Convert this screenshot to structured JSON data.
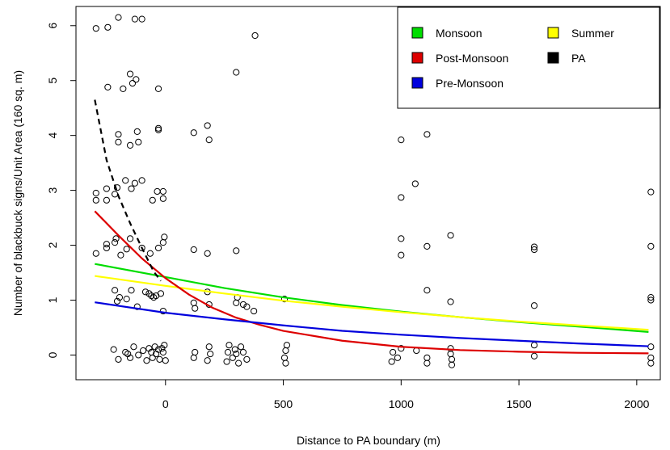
{
  "chart_data": {
    "type": "scatter",
    "title": "",
    "xlabel": "Distance to PA boundary (m)",
    "ylabel": "Number of blackbuck signs/Unit Area (160 sq. m)",
    "xlim": [
      -380,
      2100
    ],
    "ylim": [
      -0.45,
      6.35
    ],
    "xticks": [
      0,
      500,
      1000,
      1500,
      2000
    ],
    "yticks": [
      0,
      1,
      2,
      3,
      4,
      5,
      6
    ],
    "grid": false,
    "legend_position": "top-right",
    "legend": [
      {
        "name": "Monsoon",
        "color": "#00dd00"
      },
      {
        "name": "Summer",
        "color": "#ffff00"
      },
      {
        "name": "Post-Monsoon",
        "color": "#dd0000"
      },
      {
        "name": "PA",
        "color": "#000000"
      },
      {
        "name": "Pre-Monsoon",
        "color": "#0000dd"
      }
    ],
    "points": [
      [
        -295,
        5.95
      ],
      [
        -245,
        5.97
      ],
      [
        -200,
        6.15
      ],
      [
        -130,
        6.12
      ],
      [
        -100,
        6.12
      ],
      [
        -245,
        4.88
      ],
      [
        -180,
        4.85
      ],
      [
        -150,
        5.12
      ],
      [
        -140,
        4.95
      ],
      [
        -125,
        5.02
      ],
      [
        -30,
        4.85
      ],
      [
        -200,
        3.88
      ],
      [
        -200,
        4.02
      ],
      [
        -150,
        3.82
      ],
      [
        -120,
        4.07
      ],
      [
        -115,
        3.88
      ],
      [
        -30,
        4.1
      ],
      [
        -30,
        4.13
      ],
      [
        -295,
        2.82
      ],
      [
        -295,
        2.95
      ],
      [
        -250,
        2.82
      ],
      [
        -250,
        3.03
      ],
      [
        -215,
        2.93
      ],
      [
        -205,
        3.05
      ],
      [
        -170,
        3.18
      ],
      [
        -145,
        3.03
      ],
      [
        -130,
        3.13
      ],
      [
        -100,
        3.18
      ],
      [
        -55,
        2.82
      ],
      [
        -35,
        2.98
      ],
      [
        -10,
        2.85
      ],
      [
        -10,
        2.98
      ],
      [
        -295,
        1.85
      ],
      [
        -250,
        1.95
      ],
      [
        -250,
        2.02
      ],
      [
        -215,
        2.05
      ],
      [
        -210,
        2.12
      ],
      [
        -190,
        1.82
      ],
      [
        -165,
        1.93
      ],
      [
        -150,
        2.12
      ],
      [
        -100,
        1.95
      ],
      [
        -65,
        1.85
      ],
      [
        -30,
        1.95
      ],
      [
        -10,
        2.05
      ],
      [
        -5,
        2.15
      ],
      [
        -215,
        1.18
      ],
      [
        -205,
        0.98
      ],
      [
        -195,
        1.05
      ],
      [
        -165,
        1.02
      ],
      [
        -145,
        1.18
      ],
      [
        -120,
        0.88
      ],
      [
        -85,
        1.15
      ],
      [
        -70,
        1.12
      ],
      [
        -60,
        1.08
      ],
      [
        -50,
        1.05
      ],
      [
        -40,
        1.08
      ],
      [
        -20,
        1.12
      ],
      [
        -10,
        0.8
      ],
      [
        -220,
        0.1
      ],
      [
        -200,
        -0.08
      ],
      [
        -170,
        0.05
      ],
      [
        -160,
        0.02
      ],
      [
        -150,
        -0.05
      ],
      [
        -135,
        0.15
      ],
      [
        -115,
        0.0
      ],
      [
        -95,
        0.08
      ],
      [
        -80,
        -0.1
      ],
      [
        -70,
        0.12
      ],
      [
        -60,
        0.05
      ],
      [
        -55,
        -0.05
      ],
      [
        -45,
        0.15
      ],
      [
        -40,
        0.02
      ],
      [
        -30,
        0.1
      ],
      [
        -25,
        -0.08
      ],
      [
        -15,
        0.12
      ],
      [
        -10,
        0.05
      ],
      [
        -5,
        0.18
      ],
      [
        0,
        -0.1
      ],
      [
        120,
        4.05
      ],
      [
        178,
        4.18
      ],
      [
        185,
        3.92
      ],
      [
        120,
        1.92
      ],
      [
        178,
        1.85
      ],
      [
        120,
        0.95
      ],
      [
        125,
        0.85
      ],
      [
        178,
        1.15
      ],
      [
        185,
        0.92
      ],
      [
        120,
        -0.05
      ],
      [
        125,
        0.05
      ],
      [
        178,
        -0.1
      ],
      [
        185,
        0.15
      ],
      [
        190,
        0.02
      ],
      [
        260,
        -0.12
      ],
      [
        265,
        0.05
      ],
      [
        270,
        0.18
      ],
      [
        285,
        -0.05
      ],
      [
        295,
        0.1
      ],
      [
        300,
        0.02
      ],
      [
        310,
        -0.15
      ],
      [
        320,
        0.15
      ],
      [
        330,
        0.05
      ],
      [
        345,
        -0.08
      ],
      [
        300,
        1.9
      ],
      [
        300,
        5.15
      ],
      [
        380,
        5.82
      ],
      [
        300,
        0.95
      ],
      [
        305,
        1.05
      ],
      [
        330,
        0.92
      ],
      [
        345,
        0.88
      ],
      [
        375,
        0.8
      ],
      [
        505,
        1.02
      ],
      [
        505,
        -0.05
      ],
      [
        510,
        0.08
      ],
      [
        510,
        -0.15
      ],
      [
        515,
        0.18
      ],
      [
        960,
        -0.12
      ],
      [
        965,
        0.05
      ],
      [
        985,
        -0.05
      ],
      [
        1000,
        3.92
      ],
      [
        1000,
        2.87
      ],
      [
        1000,
        2.12
      ],
      [
        1000,
        1.82
      ],
      [
        1000,
        0.12
      ],
      [
        1060,
        3.12
      ],
      [
        1065,
        0.08
      ],
      [
        1110,
        4.02
      ],
      [
        1110,
        1.98
      ],
      [
        1110,
        1.18
      ],
      [
        1110,
        -0.05
      ],
      [
        1110,
        -0.15
      ],
      [
        1210,
        2.18
      ],
      [
        1210,
        0.97
      ],
      [
        1210,
        0.12
      ],
      [
        1210,
        0.02
      ],
      [
        1215,
        -0.18
      ],
      [
        1215,
        -0.08
      ],
      [
        1565,
        1.97
      ],
      [
        1565,
        1.92
      ],
      [
        1565,
        0.9
      ],
      [
        1565,
        0.18
      ],
      [
        1565,
        -0.02
      ],
      [
        2060,
        2.97
      ],
      [
        2060,
        1.98
      ],
      [
        2060,
        1.05
      ],
      [
        2060,
        1.0
      ],
      [
        2060,
        0.15
      ],
      [
        2060,
        -0.05
      ],
      [
        2060,
        -0.15
      ]
    ],
    "series": [
      {
        "name": "Monsoon",
        "color": "#00dd00",
        "style": "solid",
        "x": [
          -300,
          0,
          250,
          500,
          750,
          1000,
          1250,
          1500,
          1750,
          2050
        ],
        "y": [
          1.66,
          1.42,
          1.22,
          1.05,
          0.91,
          0.79,
          0.69,
          0.6,
          0.52,
          0.42
        ]
      },
      {
        "name": "Summer",
        "color": "#ffff00",
        "style": "solid",
        "x": [
          -300,
          0,
          250,
          500,
          750,
          1000,
          1250,
          1500,
          1750,
          2050
        ],
        "y": [
          1.44,
          1.26,
          1.12,
          0.99,
          0.88,
          0.78,
          0.69,
          0.61,
          0.54,
          0.46
        ]
      },
      {
        "name": "Post-Monsoon",
        "color": "#dd0000",
        "style": "solid",
        "x": [
          -300,
          -200,
          -100,
          0,
          100,
          200,
          300,
          400,
          500,
          750,
          1000,
          1250,
          1500,
          1750,
          2050
        ],
        "y": [
          2.62,
          2.18,
          1.76,
          1.4,
          1.1,
          0.86,
          0.68,
          0.55,
          0.44,
          0.26,
          0.15,
          0.09,
          0.06,
          0.04,
          0.03
        ]
      },
      {
        "name": "Pre-Monsoon",
        "color": "#0000dd",
        "style": "solid",
        "x": [
          -300,
          0,
          250,
          500,
          750,
          1000,
          1250,
          1500,
          1750,
          2050
        ],
        "y": [
          0.96,
          0.77,
          0.65,
          0.54,
          0.44,
          0.37,
          0.31,
          0.26,
          0.21,
          0.16
        ]
      },
      {
        "name": "PA",
        "color": "#000000",
        "style": "dashed",
        "x": [
          -300,
          -250,
          -200,
          -150,
          -100,
          -50,
          -20
        ],
        "y": [
          4.65,
          3.55,
          2.9,
          2.4,
          1.95,
          1.52,
          1.35
        ]
      }
    ]
  }
}
